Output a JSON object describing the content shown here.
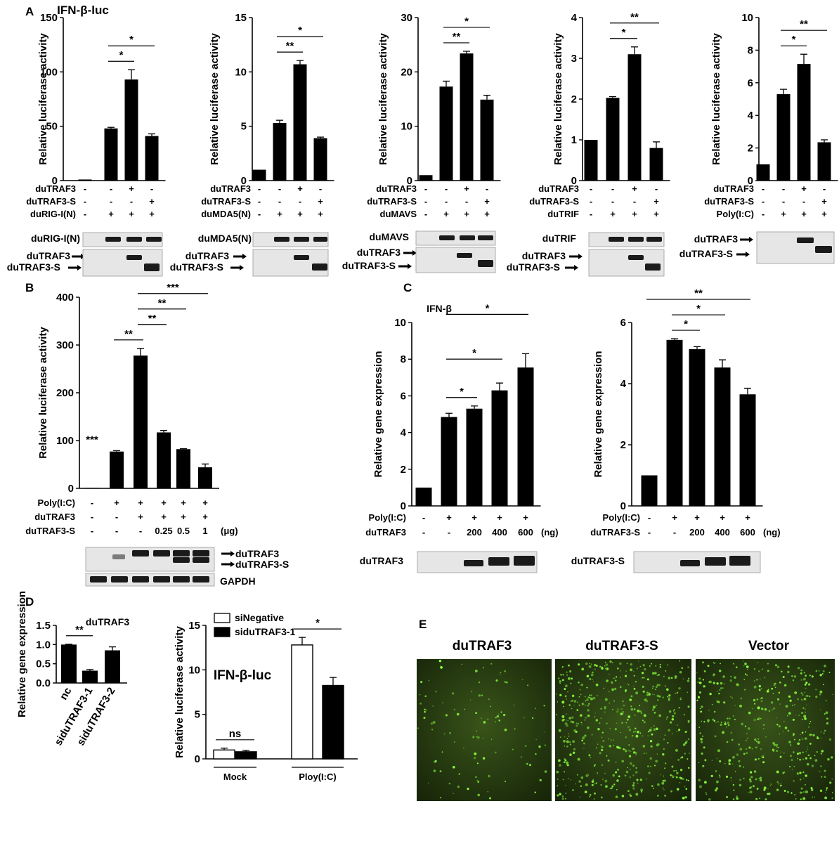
{
  "labels": {
    "A": "A",
    "B": "B",
    "C": "C",
    "D": "D",
    "E": "E"
  },
  "chart_data": [
    {
      "id": "A1",
      "type": "bar",
      "title": "IFN-β-luc",
      "ylabel": "Relative luciferase activity",
      "ylim": [
        0,
        150
      ],
      "yticks": [
        0,
        50,
        100,
        150
      ],
      "values": [
        1,
        48,
        93,
        41
      ],
      "errors": [
        0,
        1,
        9,
        2
      ],
      "rows": [
        {
          "name": "duTRAF3",
          "marks": [
            "-",
            "-",
            "+",
            "-"
          ]
        },
        {
          "name": "duTRAF3-S",
          "marks": [
            "-",
            "-",
            "-",
            "+"
          ]
        },
        {
          "name": "duRIG-I(N)",
          "marks": [
            "-",
            "+",
            "+",
            "+"
          ]
        }
      ],
      "sig": [
        {
          "from": 1,
          "to": 2,
          "label": "*"
        },
        {
          "from": 1,
          "to": 3,
          "label": "*"
        }
      ],
      "blot_labels": [
        "duRIG-I(N)",
        "duTRAF3",
        "duTRAF3-S"
      ]
    },
    {
      "id": "A2",
      "type": "bar",
      "title": "",
      "ylabel": "Relative luciferase activity",
      "ylim": [
        0,
        15
      ],
      "yticks": [
        0,
        5,
        10,
        15
      ],
      "values": [
        1,
        5.3,
        10.7,
        3.9
      ],
      "errors": [
        0,
        0.25,
        0.35,
        0.1
      ],
      "rows": [
        {
          "name": "duTRAF3",
          "marks": [
            "-",
            "-",
            "+",
            "-"
          ]
        },
        {
          "name": "duTRAF3-S",
          "marks": [
            "-",
            "-",
            "-",
            "+"
          ]
        },
        {
          "name": "duMDA5(N)",
          "marks": [
            "-",
            "+",
            "+",
            "+"
          ]
        }
      ],
      "sig": [
        {
          "from": 1,
          "to": 2,
          "label": "**"
        },
        {
          "from": 1,
          "to": 3,
          "label": "*"
        }
      ],
      "blot_labels": [
        "duMDA5(N)",
        "duTRAF3",
        "duTRAF3-S"
      ]
    },
    {
      "id": "A3",
      "type": "bar",
      "title": "",
      "ylabel": "Relative luciferase activity",
      "ylim": [
        0,
        30
      ],
      "yticks": [
        0,
        10,
        20,
        30
      ],
      "values": [
        1,
        17.3,
        23.4,
        14.9
      ],
      "errors": [
        0,
        1.0,
        0.4,
        0.8
      ],
      "rows": [
        {
          "name": "duTRAF3",
          "marks": [
            "-",
            "-",
            "+",
            "-"
          ]
        },
        {
          "name": "duTRAF3-S",
          "marks": [
            "-",
            "-",
            "-",
            "+"
          ]
        },
        {
          "name": "duMAVS",
          "marks": [
            "-",
            "+",
            "+",
            "+"
          ]
        }
      ],
      "sig": [
        {
          "from": 1,
          "to": 2,
          "label": "**"
        },
        {
          "from": 1,
          "to": 3,
          "label": "*"
        }
      ],
      "blot_labels": [
        "duMAVS",
        "duTRAF3",
        "duTRAF3-S"
      ]
    },
    {
      "id": "A4",
      "type": "bar",
      "title": "",
      "ylabel": "Relative luciferase activity",
      "ylim": [
        0,
        4
      ],
      "yticks": [
        0,
        1,
        2,
        3,
        4
      ],
      "values": [
        1,
        2.03,
        3.1,
        0.8
      ],
      "errors": [
        0,
        0.03,
        0.18,
        0.15
      ],
      "rows": [
        {
          "name": "duTRAF3",
          "marks": [
            "-",
            "-",
            "+",
            "-"
          ]
        },
        {
          "name": "duTRAF3-S",
          "marks": [
            "-",
            "-",
            "-",
            "+"
          ]
        },
        {
          "name": "duTRIF",
          "marks": [
            "-",
            "+",
            "+",
            "+"
          ]
        }
      ],
      "sig": [
        {
          "from": 1,
          "to": 2,
          "label": "*"
        },
        {
          "from": 1,
          "to": 3,
          "label": "**"
        }
      ],
      "blot_labels": [
        "duTRIF",
        "duTRAF3",
        "duTRAF3-S"
      ]
    },
    {
      "id": "A5",
      "type": "bar",
      "title": "",
      "ylabel": "Relative luciferase activity",
      "ylim": [
        0,
        10
      ],
      "yticks": [
        0,
        2,
        4,
        6,
        8,
        10
      ],
      "values": [
        1,
        5.3,
        7.15,
        2.35
      ],
      "errors": [
        0,
        0.3,
        0.6,
        0.15
      ],
      "rows": [
        {
          "name": "duTRAF3",
          "marks": [
            "-",
            "-",
            "+",
            "-"
          ]
        },
        {
          "name": "duTRAF3-S",
          "marks": [
            "-",
            "-",
            "-",
            "+"
          ]
        },
        {
          "name": "Poly(I:C)",
          "marks": [
            "-",
            "+",
            "+",
            "+"
          ]
        }
      ],
      "sig": [
        {
          "from": 1,
          "to": 2,
          "label": "*"
        },
        {
          "from": 1,
          "to": 3,
          "label": "**"
        }
      ],
      "blot_labels": [
        "duTRAF3",
        "duTRAF3-S"
      ]
    },
    {
      "id": "B",
      "type": "bar",
      "title": "",
      "ylabel": "Relative luciferase activity",
      "ylim": [
        0,
        400
      ],
      "yticks": [
        0,
        100,
        200,
        300,
        400
      ],
      "values": [
        1,
        77,
        278,
        117,
        82,
        44
      ],
      "errors": [
        0,
        2,
        15,
        4,
        1,
        7
      ],
      "rows": [
        {
          "name": "Poly(I:C)",
          "marks": [
            "-",
            "+",
            "+",
            "+",
            "+",
            "+"
          ]
        },
        {
          "name": "duTRAF3",
          "marks": [
            "-",
            "-",
            "+",
            "+",
            "+",
            "+"
          ]
        },
        {
          "name": "duTRAF3-S",
          "marks": [
            "-",
            "-",
            "-",
            "0.25",
            "0.5",
            "1"
          ],
          "unit": "(μg)"
        }
      ],
      "sig": [
        {
          "from": 1,
          "to": 2,
          "label": "**"
        },
        {
          "from": 2,
          "to": 3,
          "label": "**"
        },
        {
          "from": 2,
          "to": 4,
          "label": "**"
        },
        {
          "from": 2,
          "to": 5,
          "label": "***"
        }
      ],
      "solo_label": "***",
      "blot_labels": [
        "duTRAF3",
        "duTRAF3-S",
        "GAPDH"
      ]
    },
    {
      "id": "C1",
      "type": "bar",
      "title": "IFN-β",
      "ylabel": "Relative gene expression",
      "ylim": [
        0,
        10
      ],
      "yticks": [
        0,
        2,
        4,
        6,
        8,
        10
      ],
      "values": [
        1,
        4.85,
        5.3,
        6.3,
        7.55
      ],
      "errors": [
        0,
        0.2,
        0.15,
        0.4,
        0.75
      ],
      "rows": [
        {
          "name": "Poly(I:C)",
          "marks": [
            "-",
            "+",
            "+",
            "+",
            "+"
          ]
        },
        {
          "name": "duTRAF3",
          "marks": [
            "-",
            "-",
            "200",
            "400",
            "600"
          ],
          "unit": "(ng)"
        }
      ],
      "sig": [
        {
          "from": 1,
          "to": 2,
          "label": "*"
        },
        {
          "from": 1,
          "to": 3,
          "label": "*"
        },
        {
          "from": 1,
          "to": 4,
          "label": "*"
        }
      ],
      "blot_labels": [
        "duTRAF3"
      ]
    },
    {
      "id": "C2",
      "type": "bar",
      "title": "",
      "ylabel": "Relative gene expression",
      "ylim": [
        0,
        6
      ],
      "yticks": [
        0,
        2,
        4,
        6
      ],
      "values": [
        1,
        5.43,
        5.13,
        4.53,
        3.65
      ],
      "errors": [
        0,
        0.04,
        0.08,
        0.25,
        0.2
      ],
      "rows": [
        {
          "name": "Poly(I:C)",
          "marks": [
            "-",
            "+",
            "+",
            "+",
            "+"
          ]
        },
        {
          "name": "duTRAF3-S",
          "marks": [
            "-",
            "-",
            "200",
            "400",
            "600"
          ],
          "unit": "(ng)"
        }
      ],
      "sig": [
        {
          "from": 1,
          "to": 2,
          "label": "*"
        },
        {
          "from": 1,
          "to": 3,
          "label": "*"
        },
        {
          "from": 0,
          "to": 4,
          "label": "**"
        }
      ],
      "blot_labels": [
        "duTRAF3-S"
      ]
    },
    {
      "id": "D1",
      "type": "bar",
      "title": "duTRAF3",
      "ylabel": "Relative gene expression",
      "ylim": [
        0,
        1.5
      ],
      "yticks": [
        "0.0",
        "0.5",
        "1.0",
        "1.5"
      ],
      "categories": [
        "nc",
        "siduTRAF3-1",
        "siduTRAF3-2"
      ],
      "values": [
        1.0,
        0.32,
        0.85
      ],
      "errors": [
        0.01,
        0.03,
        0.09
      ],
      "sig": [
        {
          "from": 0,
          "to": 1,
          "label": "**"
        }
      ]
    },
    {
      "id": "D2",
      "type": "bar",
      "title": "IFN-β-luc",
      "ylabel": "Relative luciferase activity",
      "ylim": [
        0,
        15
      ],
      "yticks": [
        0,
        5,
        10,
        15
      ],
      "categories": [
        "Mock",
        "Ploy(I:C)"
      ],
      "series": [
        {
          "name": "siNegative",
          "values": [
            1.0,
            12.8
          ],
          "errors": [
            0.2,
            0.85
          ]
        },
        {
          "name": "siduTRAF3-1",
          "values": [
            0.8,
            8.25
          ],
          "errors": [
            0.15,
            0.9
          ]
        }
      ],
      "sig": [
        {
          "group": 0,
          "label": "ns"
        },
        {
          "group": 1,
          "label": "*"
        }
      ]
    }
  ],
  "panelE": {
    "titles": [
      "duTRAF3",
      "duTRAF3-S",
      "Vector"
    ]
  }
}
